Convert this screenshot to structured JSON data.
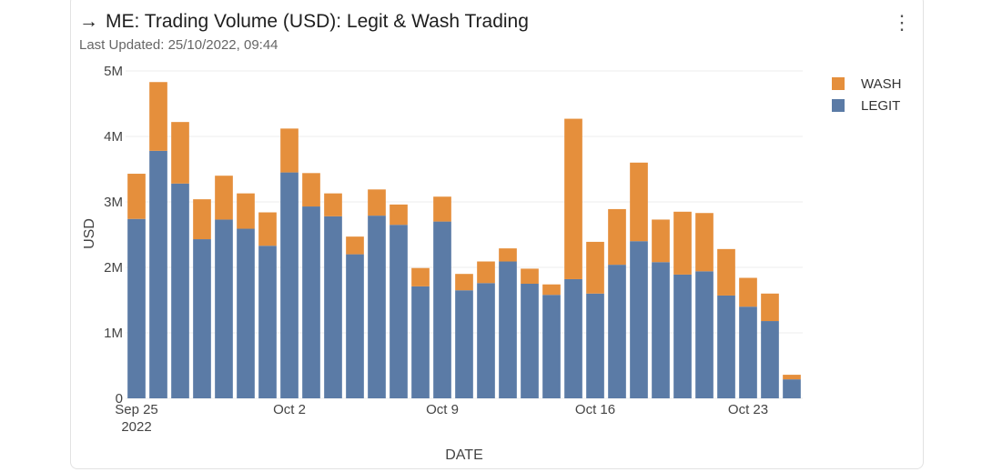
{
  "header": {
    "arrow_icon": "arrow-right-icon",
    "title": "ME: Trading Volume (USD): Legit & Wash Trading",
    "last_updated": "Last Updated: 25/10/2022, 09:44",
    "menu_icon": "more-vertical-icon"
  },
  "colors": {
    "legit": "#5b7ba6",
    "wash": "#e58f3c",
    "grid": "#eeeeee"
  },
  "chart_data": {
    "type": "bar",
    "stacked": true,
    "title": "ME: Trading Volume (USD): Legit & Wash Trading",
    "xlabel": "DATE",
    "ylabel": "USD",
    "ylim": [
      0,
      5000000
    ],
    "y_ticks": [
      {
        "value": 0,
        "label": "0"
      },
      {
        "value": 1000000,
        "label": "1M"
      },
      {
        "value": 2000000,
        "label": "2M"
      },
      {
        "value": 3000000,
        "label": "3M"
      },
      {
        "value": 4000000,
        "label": "4M"
      },
      {
        "value": 5000000,
        "label": "5M"
      }
    ],
    "x_ticks": [
      {
        "index": 0,
        "label": "Sep 25",
        "sublabel": "2022"
      },
      {
        "index": 7,
        "label": "Oct 2",
        "sublabel": ""
      },
      {
        "index": 14,
        "label": "Oct 9",
        "sublabel": ""
      },
      {
        "index": 21,
        "label": "Oct 16",
        "sublabel": ""
      },
      {
        "index": 28,
        "label": "Oct 23",
        "sublabel": ""
      }
    ],
    "categories": [
      "2022-09-25",
      "2022-09-26",
      "2022-09-27",
      "2022-09-28",
      "2022-09-29",
      "2022-09-30",
      "2022-10-01",
      "2022-10-02",
      "2022-10-03",
      "2022-10-04",
      "2022-10-05",
      "2022-10-06",
      "2022-10-07",
      "2022-10-08",
      "2022-10-09",
      "2022-10-10",
      "2022-10-11",
      "2022-10-12",
      "2022-10-13",
      "2022-10-14",
      "2022-10-15",
      "2022-10-16",
      "2022-10-17",
      "2022-10-18",
      "2022-10-19",
      "2022-10-20",
      "2022-10-21",
      "2022-10-22",
      "2022-10-23",
      "2022-10-24",
      "2022-10-25"
    ],
    "series": [
      {
        "name": "LEGIT",
        "values": [
          2740000,
          3780000,
          3280000,
          2430000,
          2730000,
          2590000,
          2330000,
          3450000,
          2930000,
          2780000,
          2200000,
          2790000,
          2650000,
          1710000,
          2700000,
          1650000,
          1760000,
          2090000,
          1750000,
          1580000,
          1820000,
          1600000,
          2040000,
          2400000,
          2080000,
          1890000,
          1940000,
          1570000,
          1400000,
          1180000,
          290000
        ]
      },
      {
        "name": "WASH",
        "values": [
          690000,
          1050000,
          940000,
          610000,
          670000,
          540000,
          510000,
          670000,
          510000,
          350000,
          270000,
          400000,
          310000,
          280000,
          380000,
          250000,
          330000,
          200000,
          230000,
          160000,
          2450000,
          790000,
          850000,
          1200000,
          650000,
          960000,
          890000,
          710000,
          440000,
          420000,
          70000
        ]
      }
    ],
    "legend": {
      "placement": "top-right",
      "order": [
        "WASH",
        "LEGIT"
      ]
    },
    "grid": true
  }
}
